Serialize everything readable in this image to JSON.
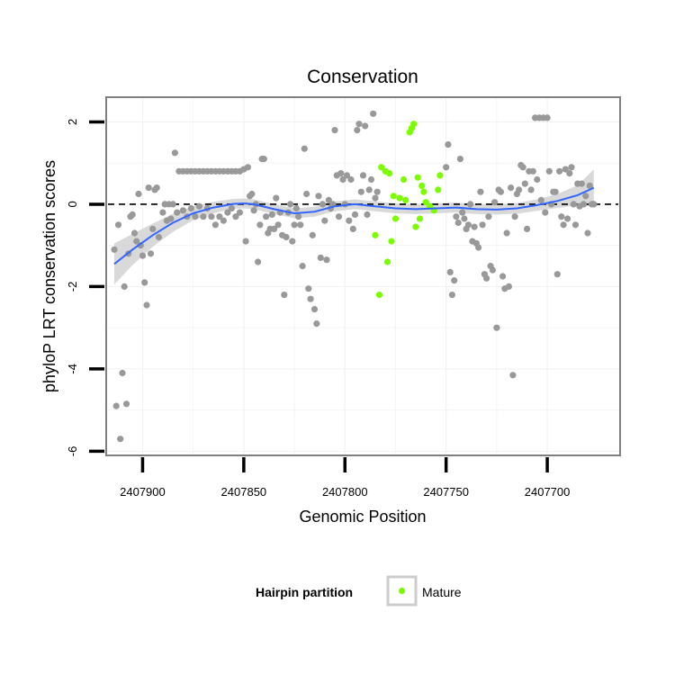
{
  "chart_data": {
    "type": "scatter",
    "title": "Conservation",
    "xlabel": "Genomic Position",
    "ylabel": "phyloP LRT conservation scores",
    "x_reversed": true,
    "xlim": [
      2407918,
      2407664
    ],
    "ylim": [
      -6.1,
      2.6
    ],
    "x_ticks": [
      2407900,
      2407850,
      2407800,
      2407750,
      2407700
    ],
    "y_ticks": [
      -6,
      -4,
      -2,
      0,
      2
    ],
    "reference_line": {
      "y": 0,
      "style": "dashed"
    },
    "colors": {
      "background": "#ffffff",
      "grid": "#f2f2f2",
      "border": "#7f7f7f",
      "other": "#999999",
      "mature": "#7cfc00",
      "smooth": "#3366ff",
      "ribbon": "#cccccc"
    },
    "legend": {
      "title": "Hairpin partition",
      "entries": [
        {
          "label": "Mature",
          "color": "#7cfc00"
        }
      ],
      "position": "bottom"
    },
    "series": [
      {
        "name": "Mature",
        "color": "#7cfc00",
        "points": [
          [
            2407782,
            0.9
          ],
          [
            2407780,
            0.8
          ],
          [
            2407778,
            0.75
          ],
          [
            2407776,
            0.2
          ],
          [
            2407773,
            0.15
          ],
          [
            2407771,
            0.6
          ],
          [
            2407768,
            1.75
          ],
          [
            2407767,
            1.85
          ],
          [
            2407766,
            1.95
          ],
          [
            2407764,
            0.65
          ],
          [
            2407762,
            0.45
          ],
          [
            2407761,
            0.3
          ],
          [
            2407760,
            0.05
          ],
          [
            2407758,
            -0.05
          ],
          [
            2407756,
            -0.15
          ],
          [
            2407754,
            0.35
          ],
          [
            2407753,
            0.7
          ],
          [
            2407785,
            -0.75
          ],
          [
            2407783,
            -2.2
          ],
          [
            2407779,
            -1.4
          ],
          [
            2407777,
            -0.9
          ],
          [
            2407775,
            -0.35
          ],
          [
            2407770,
            0.1
          ],
          [
            2407765,
            -0.55
          ],
          [
            2407763,
            -0.35
          ]
        ]
      },
      {
        "color": "#999999",
        "points": [
          [
            2407914,
            -1.1
          ],
          [
            2407913,
            -4.9
          ],
          [
            2407912,
            -0.5
          ],
          [
            2407911,
            -5.7
          ],
          [
            2407910,
            -4.1
          ],
          [
            2407909,
            -2.0
          ],
          [
            2407908,
            -4.85
          ],
          [
            2407907,
            -1.2
          ],
          [
            2407906,
            -0.3
          ],
          [
            2407905,
            -0.25
          ],
          [
            2407904,
            -0.7
          ],
          [
            2407903,
            -0.9
          ],
          [
            2407902,
            0.25
          ],
          [
            2407901,
            -1.0
          ],
          [
            2407900,
            -1.25
          ],
          [
            2407899,
            -1.9
          ],
          [
            2407898,
            -2.45
          ],
          [
            2407897,
            0.4
          ],
          [
            2407896,
            -1.2
          ],
          [
            2407895,
            -0.6
          ],
          [
            2407894,
            0.35
          ],
          [
            2407893,
            0.4
          ],
          [
            2407892,
            -0.8
          ],
          [
            2407890,
            -0.2
          ],
          [
            2407889,
            0.0
          ],
          [
            2407888,
            -0.4
          ],
          [
            2407887,
            0.0
          ],
          [
            2407886,
            -0.35
          ],
          [
            2407885,
            0.0
          ],
          [
            2407884,
            1.25
          ],
          [
            2407883,
            -0.2
          ],
          [
            2407882,
            0.8
          ],
          [
            2407880,
            0.8
          ],
          [
            2407878,
            0.8
          ],
          [
            2407876,
            0.8
          ],
          [
            2407874,
            0.8
          ],
          [
            2407872,
            0.8
          ],
          [
            2407870,
            0.8
          ],
          [
            2407868,
            0.8
          ],
          [
            2407866,
            0.8
          ],
          [
            2407864,
            0.8
          ],
          [
            2407862,
            0.8
          ],
          [
            2407860,
            0.8
          ],
          [
            2407858,
            0.8
          ],
          [
            2407856,
            0.8
          ],
          [
            2407854,
            0.8
          ],
          [
            2407852,
            0.8
          ],
          [
            2407880,
            -0.15
          ],
          [
            2407878,
            -0.3
          ],
          [
            2407876,
            -0.1
          ],
          [
            2407874,
            -0.3
          ],
          [
            2407872,
            -0.05
          ],
          [
            2407870,
            -0.3
          ],
          [
            2407868,
            -0.1
          ],
          [
            2407866,
            -0.3
          ],
          [
            2407864,
            -0.5
          ],
          [
            2407862,
            -0.3
          ],
          [
            2407860,
            -0.4
          ],
          [
            2407858,
            -0.2
          ],
          [
            2407856,
            -0.1
          ],
          [
            2407854,
            -0.3
          ],
          [
            2407852,
            -0.2
          ],
          [
            2407850,
            0.85
          ],
          [
            2407849,
            -0.9
          ],
          [
            2407848,
            0.9
          ],
          [
            2407847,
            0.2
          ],
          [
            2407846,
            0.25
          ],
          [
            2407845,
            -0.15
          ],
          [
            2407844,
            0.0
          ],
          [
            2407843,
            -1.4
          ],
          [
            2407842,
            -0.5
          ],
          [
            2407841,
            1.1
          ],
          [
            2407840,
            1.1
          ],
          [
            2407839,
            -0.3
          ],
          [
            2407838,
            -0.7
          ],
          [
            2407837,
            -0.6
          ],
          [
            2407836,
            -0.25
          ],
          [
            2407835,
            -0.6
          ],
          [
            2407834,
            0.15
          ],
          [
            2407833,
            -0.5
          ],
          [
            2407832,
            -0.2
          ],
          [
            2407831,
            -0.75
          ],
          [
            2407830,
            -2.2
          ],
          [
            2407829,
            -0.8
          ],
          [
            2407828,
            -0.2
          ],
          [
            2407827,
            0.0
          ],
          [
            2407826,
            -0.9
          ],
          [
            2407825,
            -0.5
          ],
          [
            2407824,
            -0.1
          ],
          [
            2407823,
            -0.3
          ],
          [
            2407822,
            -0.5
          ],
          [
            2407821,
            -1.5
          ],
          [
            2407820,
            1.35
          ],
          [
            2407819,
            0.25
          ],
          [
            2407818,
            -2.05
          ],
          [
            2407817,
            -2.3
          ],
          [
            2407816,
            -0.75
          ],
          [
            2407815,
            -2.55
          ],
          [
            2407814,
            -2.9
          ],
          [
            2407813,
            0.2
          ],
          [
            2407812,
            -1.3
          ],
          [
            2407811,
            0.0
          ],
          [
            2407810,
            -0.4
          ],
          [
            2407809,
            -1.35
          ],
          [
            2407808,
            0.1
          ],
          [
            2407807,
            -0.1
          ],
          [
            2407806,
            0.0
          ],
          [
            2407805,
            1.8
          ],
          [
            2407804,
            0.7
          ],
          [
            2407803,
            -0.3
          ],
          [
            2407802,
            0.75
          ],
          [
            2407801,
            0.6
          ],
          [
            2407800,
            0.0
          ],
          [
            2407799,
            0.7
          ],
          [
            2407798,
            -0.4
          ],
          [
            2407797,
            0.6
          ],
          [
            2407796,
            -0.6
          ],
          [
            2407795,
            -0.25
          ],
          [
            2407794,
            1.8
          ],
          [
            2407793,
            1.95
          ],
          [
            2407792,
            0.3
          ],
          [
            2407791,
            0.7
          ],
          [
            2407790,
            1.9
          ],
          [
            2407789,
            -0.25
          ],
          [
            2407788,
            0.35
          ],
          [
            2407787,
            0.6
          ],
          [
            2407786,
            2.2
          ],
          [
            2407785,
            0.15
          ],
          [
            2407784,
            0.3
          ],
          [
            2407750,
            0.9
          ],
          [
            2407749,
            1.45
          ],
          [
            2407748,
            -1.65
          ],
          [
            2407747,
            -2.2
          ],
          [
            2407746,
            -1.85
          ],
          [
            2407745,
            -0.3
          ],
          [
            2407744,
            -0.45
          ],
          [
            2407743,
            1.1
          ],
          [
            2407742,
            -0.2
          ],
          [
            2407741,
            -0.35
          ],
          [
            2407740,
            -0.6
          ],
          [
            2407739,
            -0.5
          ],
          [
            2407738,
            0.0
          ],
          [
            2407737,
            -0.9
          ],
          [
            2407736,
            -0.55
          ],
          [
            2407735,
            -0.95
          ],
          [
            2407734,
            -1.05
          ],
          [
            2407733,
            0.3
          ],
          [
            2407732,
            -0.5
          ],
          [
            2407731,
            -1.7
          ],
          [
            2407730,
            -1.8
          ],
          [
            2407729,
            -0.3
          ],
          [
            2407728,
            -1.5
          ],
          [
            2407727,
            -1.6
          ],
          [
            2407726,
            0.05
          ],
          [
            2407725,
            -3.0
          ],
          [
            2407724,
            0.35
          ],
          [
            2407723,
            0.3
          ],
          [
            2407722,
            -1.75
          ],
          [
            2407721,
            -2.05
          ],
          [
            2407720,
            -0.7
          ],
          [
            2407719,
            -2.0
          ],
          [
            2407718,
            0.4
          ],
          [
            2407717,
            -4.15
          ],
          [
            2407716,
            -0.3
          ],
          [
            2407715,
            0.25
          ],
          [
            2407714,
            0.35
          ],
          [
            2407713,
            0.95
          ],
          [
            2407712,
            0.9
          ],
          [
            2407711,
            0.5
          ],
          [
            2407710,
            -0.6
          ],
          [
            2407709,
            0.8
          ],
          [
            2407708,
            0.35
          ],
          [
            2407707,
            0.8
          ],
          [
            2407706,
            2.1
          ],
          [
            2407705,
            0.6
          ],
          [
            2407704,
            2.1
          ],
          [
            2407703,
            0.1
          ],
          [
            2407702,
            2.1
          ],
          [
            2407701,
            -0.2
          ],
          [
            2407700,
            2.1
          ],
          [
            2407699,
            0.8
          ],
          [
            2407698,
            0.0
          ],
          [
            2407697,
            0.3
          ],
          [
            2407696,
            0.3
          ],
          [
            2407695,
            -1.7
          ],
          [
            2407694,
            0.8
          ],
          [
            2407693,
            -0.3
          ],
          [
            2407692,
            -0.5
          ],
          [
            2407691,
            0.85
          ],
          [
            2407690,
            -0.35
          ],
          [
            2407689,
            0.75
          ],
          [
            2407688,
            0.9
          ],
          [
            2407687,
            0.0
          ],
          [
            2407686,
            -0.5
          ],
          [
            2407685,
            0.5
          ],
          [
            2407684,
            -0.05
          ],
          [
            2407683,
            0.5
          ],
          [
            2407682,
            0.0
          ],
          [
            2407681,
            0.2
          ],
          [
            2407680,
            -0.7
          ],
          [
            2407679,
            0.45
          ],
          [
            2407678,
            0.0
          ],
          [
            2407677,
            0.0
          ]
        ]
      }
    ],
    "smooth_x": [
      2407914,
      2407905,
      2407895,
      2407885,
      2407875,
      2407865,
      2407855,
      2407850,
      2407845,
      2407835,
      2407825,
      2407815,
      2407805,
      2407795,
      2407785,
      2407775,
      2407765,
      2407755,
      2407745,
      2407735,
      2407725,
      2407715,
      2407705,
      2407695,
      2407685,
      2407677
    ],
    "smooth_y": [
      -1.45,
      -1.1,
      -0.75,
      -0.45,
      -0.22,
      -0.08,
      0.01,
      0.02,
      0.0,
      -0.12,
      -0.22,
      -0.18,
      -0.05,
      0.0,
      -0.05,
      -0.1,
      -0.12,
      -0.1,
      -0.08,
      -0.12,
      -0.13,
      -0.1,
      -0.02,
      0.08,
      0.22,
      0.4
    ],
    "smooth_band": [
      0.5,
      0.38,
      0.28,
      0.22,
      0.17,
      0.14,
      0.12,
      0.12,
      0.12,
      0.12,
      0.12,
      0.12,
      0.12,
      0.12,
      0.12,
      0.12,
      0.12,
      0.12,
      0.12,
      0.12,
      0.12,
      0.13,
      0.14,
      0.17,
      0.24,
      0.45
    ]
  }
}
